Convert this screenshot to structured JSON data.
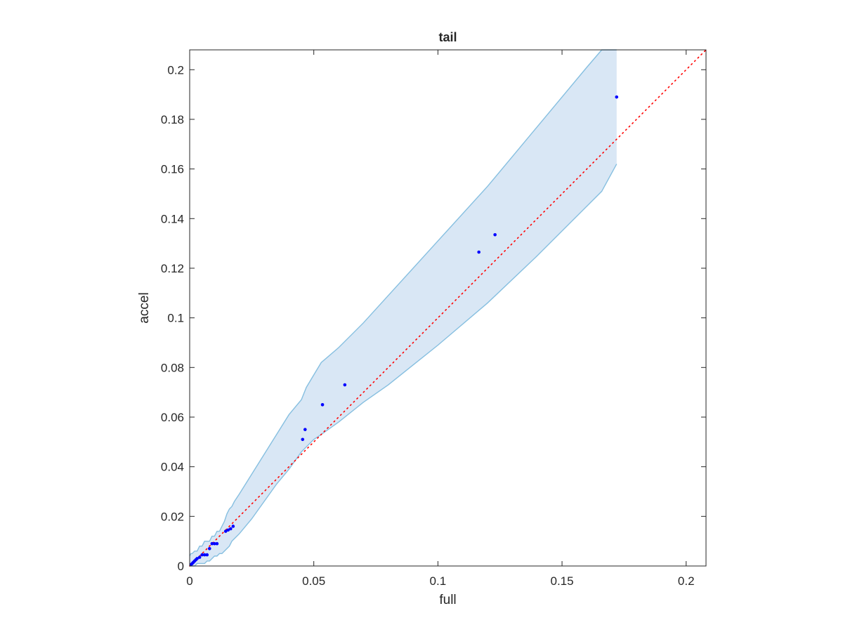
{
  "chart_data": {
    "type": "scatter",
    "title": "tail",
    "xlabel": "full",
    "ylabel": "accel",
    "xlim": [
      0,
      0.208
    ],
    "ylim": [
      0,
      0.208
    ],
    "grid": false,
    "legend": "none",
    "xticks": [
      0,
      0.05,
      0.1,
      0.15,
      0.2
    ],
    "xtick_labels": [
      "0",
      "0.05",
      "0.1",
      "0.15",
      "0.2"
    ],
    "yticks": [
      0,
      0.02,
      0.04,
      0.06,
      0.08,
      0.1,
      0.12,
      0.14,
      0.16,
      0.18,
      0.2
    ],
    "ytick_labels": [
      "0",
      "0.02",
      "0.04",
      "0.06",
      "0.08",
      "0.1",
      "0.12",
      "0.14",
      "0.16",
      "0.18",
      "0.2"
    ],
    "points": {
      "color": "#0000ff",
      "x": [
        0.0005,
        0.001,
        0.0015,
        0.002,
        0.0025,
        0.003,
        0.004,
        0.005,
        0.006,
        0.007,
        0.008,
        0.009,
        0.01,
        0.011,
        0.0145,
        0.0155,
        0.0165,
        0.0175,
        0.0455,
        0.0465,
        0.0535,
        0.0625,
        0.1165,
        0.123,
        0.172
      ],
      "y": [
        0.0005,
        0.001,
        0.0015,
        0.002,
        0.0025,
        0.003,
        0.0035,
        0.0045,
        0.0045,
        0.0045,
        0.007,
        0.009,
        0.009,
        0.009,
        0.014,
        0.0145,
        0.015,
        0.016,
        0.051,
        0.055,
        0.065,
        0.073,
        0.1265,
        0.1335,
        0.189
      ]
    },
    "band": {
      "color": "#d9e7f5",
      "edge_color": "#86bfe0",
      "x": [
        0,
        0.0005,
        0.001,
        0.002,
        0.003,
        0.004,
        0.005,
        0.006,
        0.007,
        0.008,
        0.009,
        0.01,
        0.011,
        0.012,
        0.013,
        0.014,
        0.015,
        0.016,
        0.017,
        0.018,
        0.02,
        0.025,
        0.03,
        0.035,
        0.04,
        0.045,
        0.047,
        0.05,
        0.053,
        0.06,
        0.07,
        0.08,
        0.1,
        0.12,
        0.14,
        0.16,
        0.166,
        0.172
      ],
      "upper": [
        0.004,
        0.005,
        0.005,
        0.006,
        0.006,
        0.008,
        0.008,
        0.01,
        0.01,
        0.01,
        0.012,
        0.012,
        0.014,
        0.014,
        0.016,
        0.018,
        0.021,
        0.023,
        0.024,
        0.026,
        0.029,
        0.037,
        0.045,
        0.053,
        0.061,
        0.067,
        0.072,
        0.077,
        0.082,
        0.088,
        0.098,
        0.109,
        0.131,
        0.153,
        0.177,
        0.201,
        0.208,
        0.208
      ],
      "lower": [
        0,
        0,
        0,
        0,
        0.001,
        0.001,
        0.001,
        0.001,
        0.002,
        0.002,
        0.003,
        0.004,
        0.004,
        0.005,
        0.005,
        0.006,
        0.007,
        0.008,
        0.01,
        0.011,
        0.013,
        0.019,
        0.026,
        0.033,
        0.039,
        0.046,
        0.048,
        0.051,
        0.053,
        0.058,
        0.066,
        0.073,
        0.089,
        0.106,
        0.125,
        0.145,
        0.151,
        0.162
      ]
    },
    "reference_line": {
      "style": "dotted",
      "color": "#ff0000",
      "x": [
        0,
        0.208
      ],
      "y": [
        0,
        0.208
      ]
    }
  }
}
